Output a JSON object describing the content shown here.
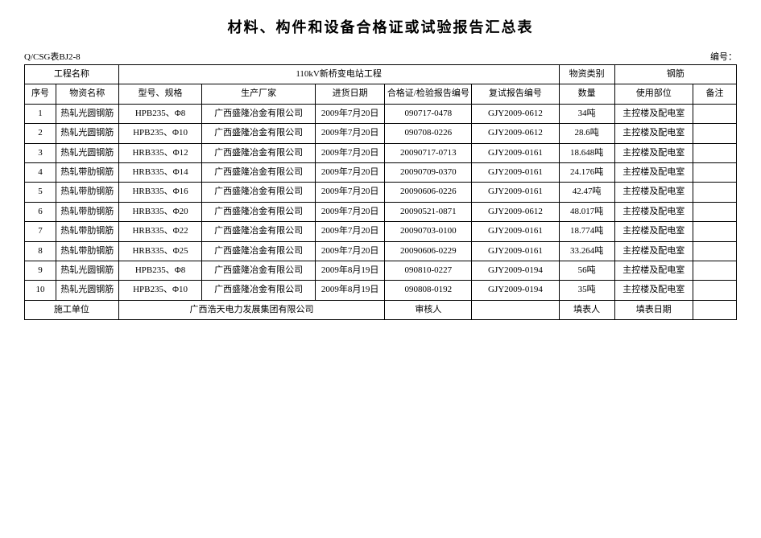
{
  "title": "材料、构件和设备合格证或试验报告汇总表",
  "form_code": "Q/CSG表BJ2-8",
  "doc_no_label": "编号：",
  "doc_no_value": "",
  "header": {
    "project_name_label": "工程名称",
    "project_name_value": "110kV新桥变电站工程",
    "material_category_label": "物资类别",
    "material_category_value": "钢筋"
  },
  "columns": {
    "seq": "序号",
    "material_name": "物资名称",
    "spec": "型号、规格",
    "manufacturer": "生产厂家",
    "arrival_date": "进货日期",
    "cert_no": "合格证/检验报告编号",
    "retest_no": "复试报告编号",
    "qty": "数量",
    "use_location": "使用部位",
    "remark": "备注"
  },
  "rows": [
    {
      "seq": "1",
      "material_name": "热轧光圆钢筋",
      "spec": "HPB235、Φ8",
      "manufacturer": "广西盛隆冶金有限公司",
      "arrival_date": "2009年7月20日",
      "cert_no": "090717-0478",
      "retest_no": "GJY2009-0612",
      "qty": "34吨",
      "use_location": "主控楼及配电室",
      "remark": ""
    },
    {
      "seq": "2",
      "material_name": "热轧光圆钢筋",
      "spec": "HPB235、Φ10",
      "manufacturer": "广西盛隆冶金有限公司",
      "arrival_date": "2009年7月20日",
      "cert_no": "090708-0226",
      "retest_no": "GJY2009-0612",
      "qty": "28.6吨",
      "use_location": "主控楼及配电室",
      "remark": ""
    },
    {
      "seq": "3",
      "material_name": "热轧光圆钢筋",
      "spec": "HRB335、Φ12",
      "manufacturer": "广西盛隆冶金有限公司",
      "arrival_date": "2009年7月20日",
      "cert_no": "20090717-0713",
      "retest_no": "GJY2009-0161",
      "qty": "18.648吨",
      "use_location": "主控楼及配电室",
      "remark": ""
    },
    {
      "seq": "4",
      "material_name": "热轧带肋钢筋",
      "spec": "HRB335、Φ14",
      "manufacturer": "广西盛隆冶金有限公司",
      "arrival_date": "2009年7月20日",
      "cert_no": "20090709-0370",
      "retest_no": "GJY2009-0161",
      "qty": "24.176吨",
      "use_location": "主控楼及配电室",
      "remark": ""
    },
    {
      "seq": "5",
      "material_name": "热轧带肋钢筋",
      "spec": "HRB335、Φ16",
      "manufacturer": "广西盛隆冶金有限公司",
      "arrival_date": "2009年7月20日",
      "cert_no": "20090606-0226",
      "retest_no": "GJY2009-0161",
      "qty": "42.47吨",
      "use_location": "主控楼及配电室",
      "remark": ""
    },
    {
      "seq": "6",
      "material_name": "热轧带肋钢筋",
      "spec": "HRB335、Φ20",
      "manufacturer": "广西盛隆冶金有限公司",
      "arrival_date": "2009年7月20日",
      "cert_no": "20090521-0871",
      "retest_no": "GJY2009-0612",
      "qty": "48.017吨",
      "use_location": "主控楼及配电室",
      "remark": ""
    },
    {
      "seq": "7",
      "material_name": "热轧带肋钢筋",
      "spec": "HRB335、Φ22",
      "manufacturer": "广西盛隆冶金有限公司",
      "arrival_date": "2009年7月20日",
      "cert_no": "20090703-0100",
      "retest_no": "GJY2009-0161",
      "qty": "18.774吨",
      "use_location": "主控楼及配电室",
      "remark": ""
    },
    {
      "seq": "8",
      "material_name": "热轧带肋钢筋",
      "spec": "HRB335、Φ25",
      "manufacturer": "广西盛隆冶金有限公司",
      "arrival_date": "2009年7月20日",
      "cert_no": "20090606-0229",
      "retest_no": "GJY2009-0161",
      "qty": "33.264吨",
      "use_location": "主控楼及配电室",
      "remark": ""
    },
    {
      "seq": "9",
      "material_name": "热轧光圆钢筋",
      "spec": "HPB235、Φ8",
      "manufacturer": "广西盛隆冶金有限公司",
      "arrival_date": "2009年8月19日",
      "cert_no": "090810-0227",
      "retest_no": "GJY2009-0194",
      "qty": "56吨",
      "use_location": "主控楼及配电室",
      "remark": ""
    },
    {
      "seq": "10",
      "material_name": "热轧光圆钢筋",
      "spec": "HPB235、Φ10",
      "manufacturer": "广西盛隆冶金有限公司",
      "arrival_date": "2009年8月19日",
      "cert_no": "090808-0192",
      "retest_no": "GJY2009-0194",
      "qty": "35吨",
      "use_location": "主控楼及配电室",
      "remark": ""
    }
  ],
  "footer": {
    "construction_unit_label": "施工单位",
    "construction_unit_value": "广西浩天电力发展集团有限公司",
    "reviewer_label": "审核人",
    "reviewer_value": "",
    "filler_label": "填表人",
    "filler_value": "",
    "fill_date_label": "填表日期",
    "fill_date_value": ""
  },
  "style": {
    "background_color": "#ffffff",
    "text_color": "#000000",
    "border_color": "#000000",
    "title_fontsize": 18,
    "body_fontsize": 11,
    "font_family": "SimSun"
  }
}
